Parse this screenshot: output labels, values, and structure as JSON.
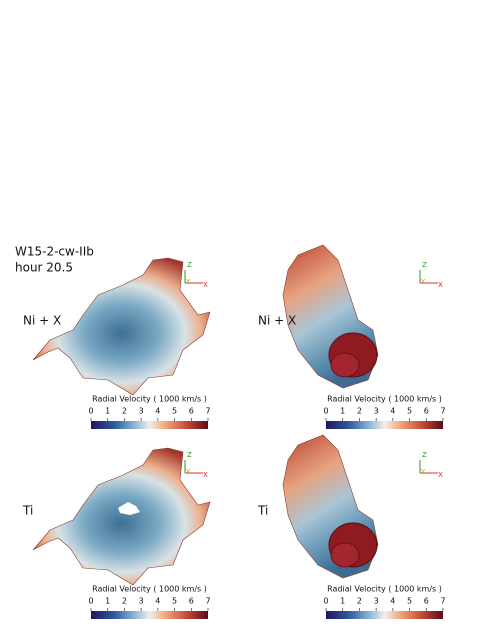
{
  "header": {
    "title": "W15-2-cw-IIb",
    "subtitle": "hour 20.5"
  },
  "panels": [
    {
      "label": "Ni + X",
      "view": "front",
      "axes": [
        "Z",
        "Y",
        "X"
      ],
      "colorbar": {
        "title": "Radial Velocity ( 1000 km/s )",
        "ticks": [
          0,
          1,
          2,
          3,
          4,
          5,
          6,
          7
        ]
      }
    },
    {
      "label": "Ni + X",
      "view": "side",
      "axes": [
        "Z",
        "Y",
        "X"
      ],
      "colorbar": {
        "title": "Radial Velocity ( 1000 km/s )",
        "ticks": [
          0,
          1,
          2,
          3,
          4,
          5,
          6,
          7
        ]
      }
    },
    {
      "label": "Ti",
      "view": "front",
      "axes": [
        "Z",
        "Y",
        "X"
      ],
      "colorbar": {
        "title": "Radial Velocity ( 1000 km/s )",
        "ticks": [
          0,
          1,
          2,
          3,
          4,
          5,
          6,
          7
        ]
      }
    },
    {
      "label": "Ti",
      "view": "side",
      "axes": [
        "Z",
        "Y",
        "X"
      ],
      "colorbar": {
        "title": "Radial Velocity ( 1000 km/s )",
        "ticks": [
          0,
          1,
          2,
          3,
          4,
          5,
          6,
          7
        ]
      }
    }
  ]
}
